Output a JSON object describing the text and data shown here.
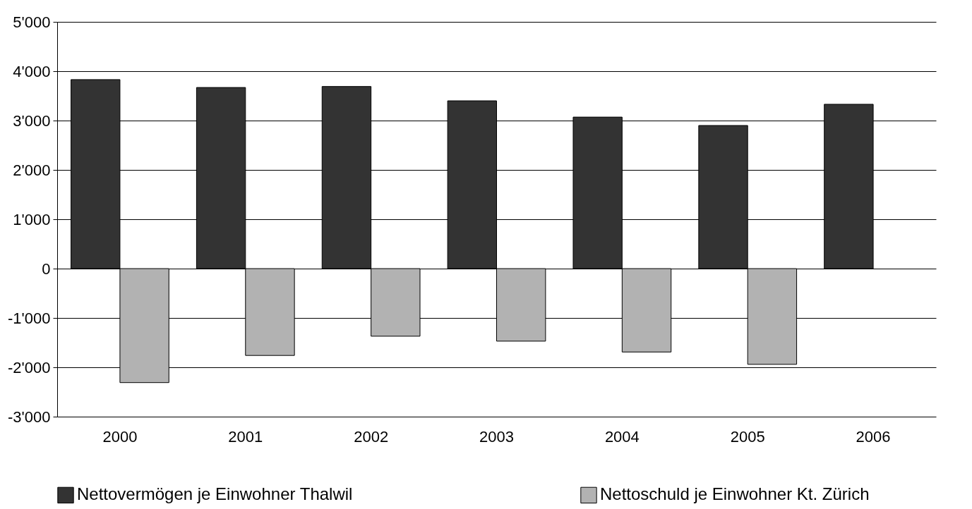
{
  "chart_data": {
    "type": "bar",
    "categories": [
      "2000",
      "2001",
      "2002",
      "2003",
      "2004",
      "2005",
      "2006"
    ],
    "series": [
      {
        "name": "Nettovermögen je Einwohner Thalwil",
        "color": "#333333",
        "values": [
          3830,
          3670,
          3690,
          3400,
          3070,
          2900,
          3330
        ]
      },
      {
        "name": "Nettoschuld je Einwohner Kt. Zürich",
        "color": "#b2b2b2",
        "values": [
          -2310,
          -1760,
          -1370,
          -1470,
          -1690,
          -1940,
          null
        ]
      }
    ],
    "ylim": [
      -3000,
      5000
    ],
    "yticks": [
      {
        "value": -3000,
        "label": "-3'000"
      },
      {
        "value": -2000,
        "label": "-2'000"
      },
      {
        "value": -1000,
        "label": "-1'000"
      },
      0,
      {
        "value": 1000,
        "label": "1'000"
      },
      {
        "value": 2000,
        "label": "2'000"
      },
      {
        "value": 3000,
        "label": "3'000"
      },
      {
        "value": 4000,
        "label": "4'000"
      },
      {
        "value": 5000,
        "label": "5'000"
      }
    ],
    "grid": "y",
    "legend": "bottom"
  }
}
